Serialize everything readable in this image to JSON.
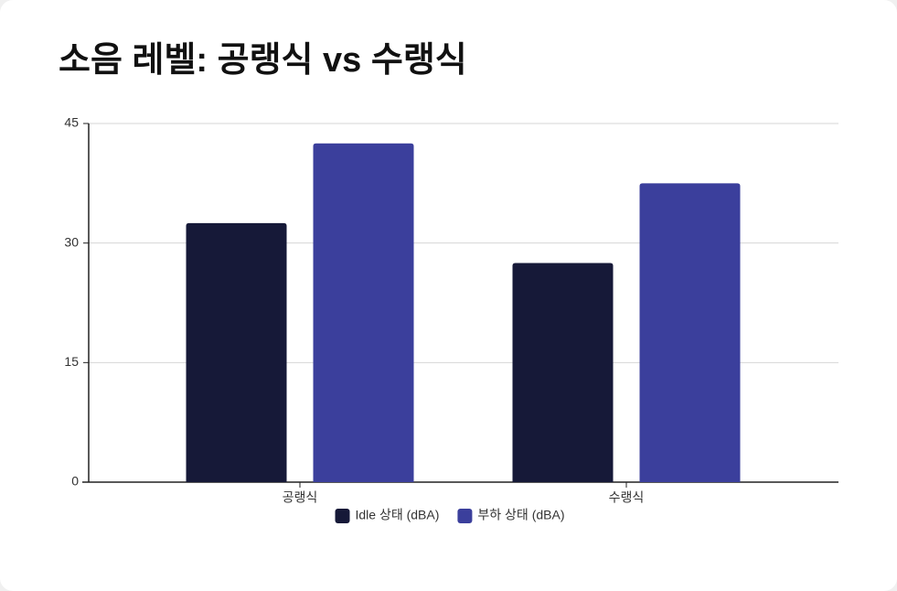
{
  "chart_data": {
    "type": "bar",
    "title": "소음 레벨: 공랭식 vs 수랭식",
    "categories": [
      "공랭식",
      "수랭식"
    ],
    "series": [
      {
        "name": "Idle 상태 (dBA)",
        "color": "#161938",
        "values": [
          32.5,
          27.5
        ]
      },
      {
        "name": "부하 상태 (dBA)",
        "color": "#3b3f9c",
        "values": [
          42.5,
          37.5
        ]
      }
    ],
    "ylim": [
      0,
      45
    ],
    "yticks": [
      0,
      15,
      30,
      45
    ],
    "grid": true,
    "legend": "bottom"
  }
}
